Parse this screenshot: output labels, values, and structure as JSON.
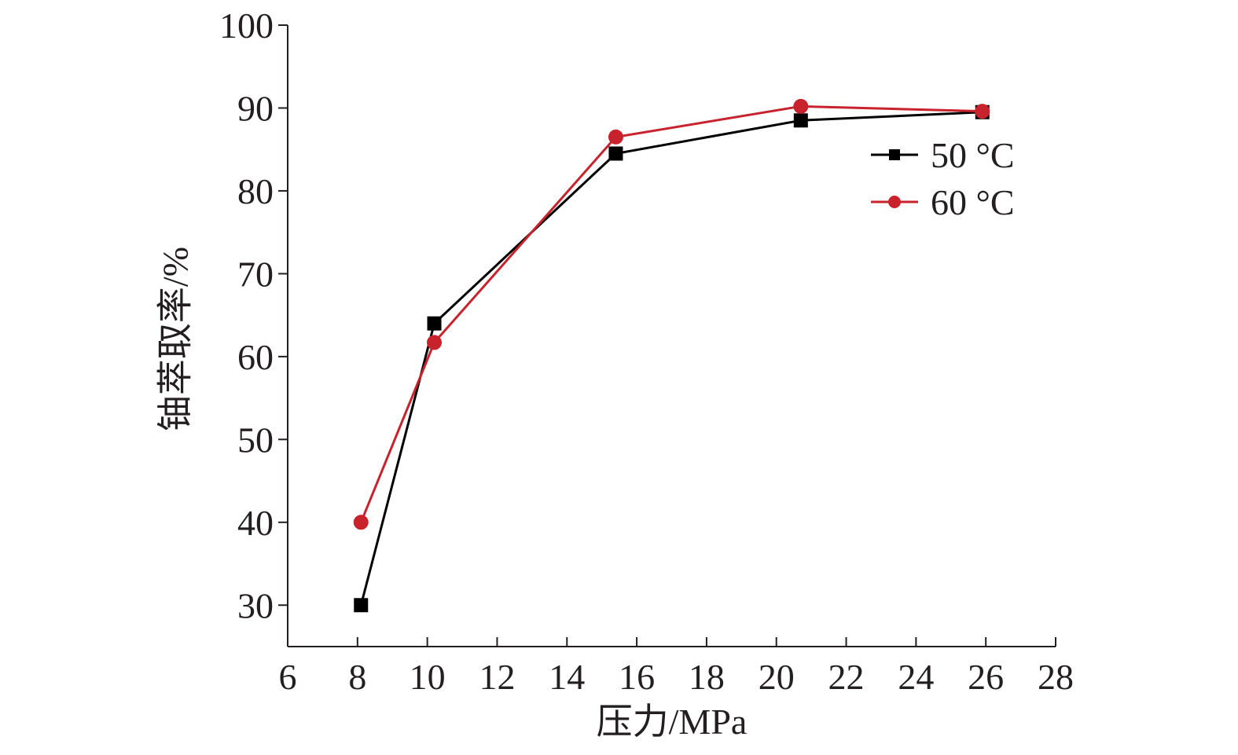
{
  "chart_data": {
    "type": "line",
    "title": "",
    "xlabel": "压力/MPa",
    "ylabel": "铀萃取率/%",
    "xlim": [
      6,
      28
    ],
    "ylim": [
      25,
      100
    ],
    "x_ticks": [
      6,
      8,
      10,
      12,
      14,
      16,
      18,
      20,
      22,
      24,
      26,
      28
    ],
    "y_ticks": [
      30,
      40,
      50,
      60,
      70,
      80,
      90,
      100
    ],
    "grid": false,
    "legend_position": "top-right",
    "series": [
      {
        "name": "50 °C",
        "color": "#000000",
        "marker": "square",
        "points": [
          {
            "x": 8.1,
            "y": 30.0
          },
          {
            "x": 10.2,
            "y": 64.0
          },
          {
            "x": 15.4,
            "y": 84.5
          },
          {
            "x": 20.7,
            "y": 88.5
          },
          {
            "x": 25.9,
            "y": 89.5
          }
        ]
      },
      {
        "name": "60 °C",
        "color": "#c8232c",
        "marker": "circle",
        "points": [
          {
            "x": 8.1,
            "y": 40.0
          },
          {
            "x": 10.2,
            "y": 61.7
          },
          {
            "x": 15.4,
            "y": 86.5
          },
          {
            "x": 20.7,
            "y": 90.2
          },
          {
            "x": 25.9,
            "y": 89.6
          }
        ]
      }
    ]
  }
}
